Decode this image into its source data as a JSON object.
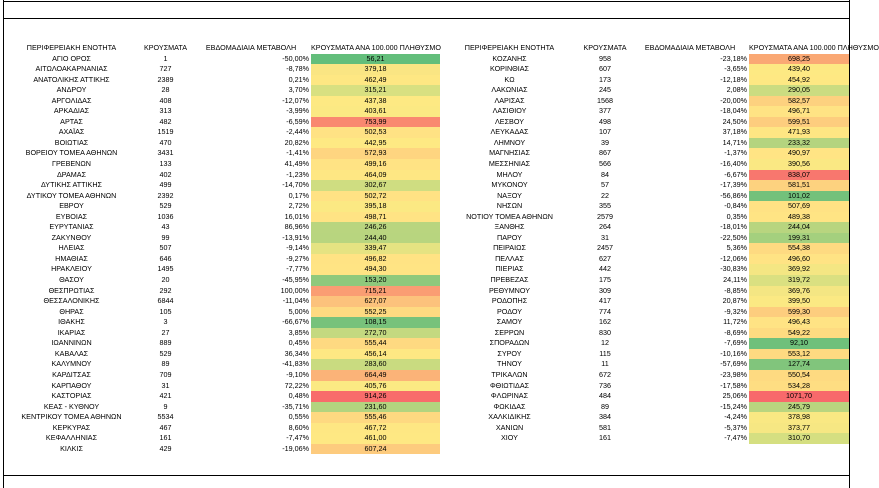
{
  "headers": [
    "ΠΕΡΙΦΕΡΕΙΑΚΗ ΕΝΟΤΗΤΑ",
    "ΚΡΟΥΣΜΑΤΑ",
    "ΕΒΔΟΜΑΔΙΑΙΑ ΜΕΤΑΒΟΛΗ",
    "ΚΡΟΥΣΜΑΤΑ ΑΝΑ 100.000 ΠΛΗΘΥΣΜΟ",
    "ΠΕΡΙΦΕΡΕΙΑΚΗ ΕΝΟΤΗΤΑ",
    "ΚΡΟΥΣΜΑΤΑ",
    "ΕΒΔΟΜΑΔΙΑΙΑ ΜΕΤΑΒΟΛΗ",
    "ΚΡΟΥΣΜΑΤΑ ΑΝΑ 100.000 ΠΛΗΘΥΣΜΟ"
  ],
  "heat_colors": {
    "lowest": "#63be7b",
    "low": "#a9d27f",
    "mid_low": "#d3df82",
    "mid": "#ffe984",
    "mid_high": "#fdc87d",
    "high": "#f9a173",
    "highest": "#f8696b"
  },
  "left_rows": [
    {
      "region": "ΑΓΙΟ ΟΡΟΣ",
      "cases": "1",
      "change": "-50,00%",
      "rate": "56,21",
      "color": "#63be7b"
    },
    {
      "region": "ΑΙΤΩΛΟΑΚΑΡΝΑΝΙΑΣ",
      "cases": "727",
      "change": "-8,78%",
      "rate": "379,18",
      "color": "#fae583"
    },
    {
      "region": "ΑΝΑΤΟΛΙΚΗΣ ΑΤΤΙΚΗΣ",
      "cases": "2389",
      "change": "0,21%",
      "rate": "462,49",
      "color": "#fee783"
    },
    {
      "region": "ΑΝΔΡΟΥ",
      "cases": "28",
      "change": "3,70%",
      "rate": "315,21",
      "color": "#d8e081"
    },
    {
      "region": "ΑΡΓΟΛΙΔΑΣ",
      "cases": "408",
      "change": "-12,07%",
      "rate": "437,38",
      "color": "#fde983"
    },
    {
      "region": "ΑΡΚΑΔΙΑΣ",
      "cases": "313",
      "change": "-3,99%",
      "rate": "403,61",
      "color": "#fbe983"
    },
    {
      "region": "ΑΡΤΑΣ",
      "cases": "482",
      "change": "-6,59%",
      "rate": "753,99",
      "color": "#f98870"
    },
    {
      "region": "ΑΧΑΪΑΣ",
      "cases": "1519",
      "change": "-2,44%",
      "rate": "502,53",
      "color": "#ffe284"
    },
    {
      "region": "ΒΟΙΩΤΙΑΣ",
      "cases": "470",
      "change": "20,82%",
      "rate": "442,95",
      "color": "#fee983"
    },
    {
      "region": "ΒΟΡΕΙΟΥ ΤΟΜΕΑ ΑΘΗΝΩΝ",
      "cases": "3431",
      "change": "-1,41%",
      "rate": "572,93",
      "color": "#fed580"
    },
    {
      "region": "ΓΡΕΒΕΝΩΝ",
      "cases": "133",
      "change": "41,49%",
      "rate": "499,16",
      "color": "#ffe384"
    },
    {
      "region": "ΔΡΑΜΑΣ",
      "cases": "402",
      "change": "-1,23%",
      "rate": "464,09",
      "color": "#fee783"
    },
    {
      "region": "ΔΥΤΙΚΗΣ ΑΤΤΙΚΗΣ",
      "cases": "499",
      "change": "-14,70%",
      "rate": "302,67",
      "color": "#cfdd81"
    },
    {
      "region": "ΔΥΤΙΚΟΥ ΤΟΜΕΑ ΑΘΗΝΩΝ",
      "cases": "2392",
      "change": "0,17%",
      "rate": "502,72",
      "color": "#ffe284"
    },
    {
      "region": "ΕΒΡΟΥ",
      "cases": "529",
      "change": "2,72%",
      "rate": "395,18",
      "color": "#fbe983"
    },
    {
      "region": "ΕΥΒΟΙΑΣ",
      "cases": "1036",
      "change": "16,01%",
      "rate": "498,71",
      "color": "#ffe384"
    },
    {
      "region": "ΕΥΡΥΤΑΝΙΑΣ",
      "cases": "43",
      "change": "86,96%",
      "rate": "246,26",
      "color": "#b9d57f"
    },
    {
      "region": "ΖΑΚΥΝΘΟΥ",
      "cases": "99",
      "change": "-13,91%",
      "rate": "244,40",
      "color": "#b8d57f"
    },
    {
      "region": "ΗΛΕΙΑΣ",
      "cases": "507",
      "change": "-9,14%",
      "rate": "339,47",
      "color": "#e5e382"
    },
    {
      "region": "ΗΜΑΘΙΑΣ",
      "cases": "646",
      "change": "-9,27%",
      "rate": "496,82",
      "color": "#ffe384"
    },
    {
      "region": "ΗΡΑΚΛΕΙΟΥ",
      "cases": "1495",
      "change": "-7,77%",
      "rate": "494,30",
      "color": "#ffe484"
    },
    {
      "region": "ΘΑΣΟΥ",
      "cases": "20",
      "change": "-45,95%",
      "rate": "153,20",
      "color": "#8fc97c"
    },
    {
      "region": "ΘΕΣΠΡΩΤΙΑΣ",
      "cases": "292",
      "change": "100,00%",
      "rate": "715,21",
      "color": "#fa9d73"
    },
    {
      "region": "ΘΕΣΣΑΛΟΝΙΚΗΣ",
      "cases": "6844",
      "change": "-11,04%",
      "rate": "627,07",
      "color": "#fcc27c"
    },
    {
      "region": "ΘΗΡΑΣ",
      "cases": "105",
      "change": "5,00%",
      "rate": "552,25",
      "color": "#feda81"
    },
    {
      "region": "ΙΘΑΚΗΣ",
      "cases": "3",
      "change": "-66,67%",
      "rate": "108,15",
      "color": "#77c27b"
    },
    {
      "region": "ΙΚΑΡΙΑΣ",
      "cases": "27",
      "change": "3,85%",
      "rate": "272,70",
      "color": "#c4d980"
    },
    {
      "region": "ΙΩΑΝΝΙΝΩΝ",
      "cases": "889",
      "change": "0,45%",
      "rate": "555,44",
      "color": "#fed981"
    },
    {
      "region": "ΚΑΒΑΛΑΣ",
      "cases": "529",
      "change": "36,34%",
      "rate": "456,14",
      "color": "#fee883"
    },
    {
      "region": "ΚΑΛΥΜΝΟΥ",
      "cases": "89",
      "change": "-41,83%",
      "rate": "283,60",
      "color": "#c9db80"
    },
    {
      "region": "ΚΑΡΔΙΤΣΑΣ",
      "cases": "709",
      "change": "-9,10%",
      "rate": "664,49",
      "color": "#fbb378"
    },
    {
      "region": "ΚΑΡΠΑΘΟΥ",
      "cases": "31",
      "change": "72,22%",
      "rate": "405,76",
      "color": "#fbe983"
    },
    {
      "region": "ΚΑΣΤΟΡΙΑΣ",
      "cases": "421",
      "change": "0,48%",
      "rate": "914,26",
      "color": "#f86c6b"
    },
    {
      "region": "ΚΕΑΣ - ΚΥΘΝΟΥ",
      "cases": "9",
      "change": "-35,71%",
      "rate": "231,60",
      "color": "#b3d47f"
    },
    {
      "region": "ΚΕΝΤΡΙΚΟΥ ΤΟΜΕΑ ΑΘΗΝΩΝ",
      "cases": "5534",
      "change": "0,55%",
      "rate": "555,46",
      "color": "#fed981"
    },
    {
      "region": "ΚΕΡΚΥΡΑΣ",
      "cases": "467",
      "change": "8,60%",
      "rate": "467,72",
      "color": "#fee783"
    },
    {
      "region": "ΚΕΦΑΛΛΗΝΙΑΣ",
      "cases": "161",
      "change": "-7,47%",
      "rate": "461,00",
      "color": "#fee883"
    },
    {
      "region": "ΚΙΛΚΙΣ",
      "cases": "429",
      "change": "-19,06%",
      "rate": "607,24",
      "color": "#fdcb7e"
    }
  ],
  "right_rows": [
    {
      "region": "ΚΟΖΑΝΗΣ",
      "cases": "958",
      "change": "-23,18%",
      "rate": "698,25",
      "color": "#faa874"
    },
    {
      "region": "ΚΟΡΙΝΘΙΑΣ",
      "cases": "607",
      "change": "-3,65%",
      "rate": "439,40",
      "color": "#fde983"
    },
    {
      "region": "ΚΩ",
      "cases": "173",
      "change": "-12,18%",
      "rate": "454,92",
      "color": "#fee883"
    },
    {
      "region": "ΛΑΚΩΝΙΑΣ",
      "cases": "245",
      "change": "2,08%",
      "rate": "290,05",
      "color": "#cbdc81"
    },
    {
      "region": "ΛΑΡΙΣΑΣ",
      "cases": "1568",
      "change": "-20,00%",
      "rate": "582,57",
      "color": "#fdd17f"
    },
    {
      "region": "ΛΑΣΙΘΙΟΥ",
      "cases": "377",
      "change": "-18,04%",
      "rate": "496,71",
      "color": "#ffe384"
    },
    {
      "region": "ΛΕΣΒΟΥ",
      "cases": "498",
      "change": "24,50%",
      "rate": "599,51",
      "color": "#fdcd7e"
    },
    {
      "region": "ΛΕΥΚΑΔΑΣ",
      "cases": "107",
      "change": "37,18%",
      "rate": "471,93",
      "color": "#fee683"
    },
    {
      "region": "ΛΗΜΝΟΥ",
      "cases": "39",
      "change": "14,71%",
      "rate": "233,32",
      "color": "#b4d47f"
    },
    {
      "region": "ΜΑΓΝΗΣΙΑΣ",
      "cases": "867",
      "change": "-1,37%",
      "rate": "490,97",
      "color": "#ffe484"
    },
    {
      "region": "ΜΕΣΣΗΝΙΑΣ",
      "cases": "566",
      "change": "-16,40%",
      "rate": "390,56",
      "color": "#fae883"
    },
    {
      "region": "ΜΗΛΟΥ",
      "cases": "84",
      "change": "-6,67%",
      "rate": "838,07",
      "color": "#f8776e"
    },
    {
      "region": "ΜΥΚΟΝΟΥ",
      "cases": "57",
      "change": "-17,39%",
      "rate": "581,51",
      "color": "#fdd27f"
    },
    {
      "region": "ΝΑΞΟΥ",
      "cases": "22",
      "change": "-56,86%",
      "rate": "101,02",
      "color": "#73c17b"
    },
    {
      "region": "ΝΗΣΩΝ",
      "cases": "355",
      "change": "-0,84%",
      "rate": "507,69",
      "color": "#ffe284"
    },
    {
      "region": "ΝΟΤΙΟΥ ΤΟΜΕΑ ΑΘΗΝΩΝ",
      "cases": "2579",
      "change": "0,35%",
      "rate": "489,38",
      "color": "#ffe484"
    },
    {
      "region": "ΞΑΝΘΗΣ",
      "cases": "264",
      "change": "-18,01%",
      "rate": "244,04",
      "color": "#b8d57f"
    },
    {
      "region": "ΠΑΡΟΥ",
      "cases": "31",
      "change": "-22,50%",
      "rate": "199,31",
      "color": "#a4d07e"
    },
    {
      "region": "ΠΕΙΡΑΙΩΣ",
      "cases": "2457",
      "change": "5,36%",
      "rate": "554,38",
      "color": "#feda81"
    },
    {
      "region": "ΠΕΛΛΑΣ",
      "cases": "627",
      "change": "-12,06%",
      "rate": "496,60",
      "color": "#ffe384"
    },
    {
      "region": "ΠΙΕΡΙΑΣ",
      "cases": "442",
      "change": "-30,83%",
      "rate": "369,92",
      "color": "#f4e683"
    },
    {
      "region": "ΠΡΕΒΕΖΑΣ",
      "cases": "175",
      "change": "24,11%",
      "rate": "319,72",
      "color": "#dae081"
    },
    {
      "region": "ΡΕΘΥΜΝΟΥ",
      "cases": "309",
      "change": "-8,85%",
      "rate": "369,76",
      "color": "#f4e683"
    },
    {
      "region": "ΡΟΔΟΠΗΣ",
      "cases": "417",
      "change": "20,87%",
      "rate": "399,50",
      "color": "#fbe983"
    },
    {
      "region": "ΡΟΔΟΥ",
      "cases": "774",
      "cases_note": "",
      "change": "-9,32%",
      "rate": "599,30",
      "color": "#fdcd7e"
    },
    {
      "region": "ΣΑΜΟΥ",
      "cases": "162",
      "change": "11,72%",
      "rate": "496,43",
      "color": "#ffe384"
    },
    {
      "region": "ΣΕΡΡΩΝ",
      "cases": "830",
      "change": "-8,69%",
      "rate": "549,22",
      "color": "#fedb81"
    },
    {
      "region": "ΣΠΟΡΑΔΩΝ",
      "cases": "12",
      "change": "-7,69%",
      "rate": "92,10",
      "color": "#6fc07b"
    },
    {
      "region": "ΣΥΡΟΥ",
      "cases": "115",
      "change": "-10,16%",
      "rate": "553,12",
      "color": "#feda81"
    },
    {
      "region": "ΤΗΝΟΥ",
      "cases": "11",
      "change": "-57,69%",
      "rate": "127,74",
      "color": "#81c57c"
    },
    {
      "region": "ΤΡΙΚΑΛΩΝ",
      "cases": "672",
      "change": "-23,98%",
      "rate": "550,54",
      "color": "#feda81"
    },
    {
      "region": "ΦΘΙΩΤΙΔΑΣ",
      "cases": "736",
      "change": "-17,58%",
      "rate": "534,28",
      "color": "#fedd82"
    },
    {
      "region": "ΦΛΩΡΙΝΑΣ",
      "cases": "484",
      "change": "25,06%",
      "rate": "1071,70",
      "color": "#f8696b"
    },
    {
      "region": "ΦΩΚΙΔΑΣ",
      "cases": "89",
      "change": "-15,24%",
      "rate": "245,79",
      "color": "#b9d57f"
    },
    {
      "region": "ΧΑΛΚΙΔΙΚΗΣ",
      "cases": "384",
      "change": "-4,24%",
      "rate": "378,98",
      "color": "#f9e883"
    },
    {
      "region": "ΧΑΝΙΩΝ",
      "cases": "581",
      "change": "-5,37%",
      "rate": "373,77",
      "color": "#f6e783"
    },
    {
      "region": "ΧΙΟΥ",
      "cases": "161",
      "change": "-7,47%",
      "rate": "310,70",
      "color": "#d5df81"
    }
  ]
}
